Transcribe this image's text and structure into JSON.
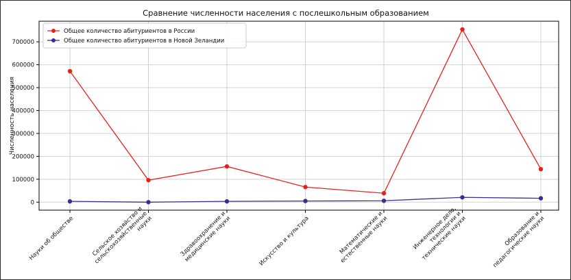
{
  "chart_data": {
    "type": "line",
    "title": "Сравнение численности населения с послешкольным образованием",
    "xlabel": "",
    "ylabel": "Численность населения",
    "categories": [
      [
        "Науки об обществе"
      ],
      [
        "Сельское хозяйство и",
        "сельскохозяйственные",
        "науки"
      ],
      [
        "Здравоохранение и",
        "медицинские науки"
      ],
      [
        "Искусство и культура"
      ],
      [
        "Математические и",
        "естественные науки"
      ],
      [
        "Инженерное дело,",
        "технологии и",
        "технические науки"
      ],
      [
        "Образование и",
        "педагогические науки"
      ]
    ],
    "series": [
      {
        "name": "Общее количество абитуриентов в России",
        "color": "#e8201c",
        "values": [
          572000,
          96000,
          156000,
          66000,
          39000,
          754000,
          144000
        ]
      },
      {
        "name": "Общее количество абитуриентов в Новой Зеландии",
        "color": "#3a2f8f",
        "values": [
          3500,
          0,
          3500,
          5000,
          6000,
          21000,
          17000
        ]
      }
    ],
    "yticks": [
      0,
      100000,
      200000,
      300000,
      400000,
      500000,
      600000,
      700000
    ],
    "ylim": [
      -35000,
      790000
    ],
    "grid": true,
    "legend_position": "top-left"
  }
}
